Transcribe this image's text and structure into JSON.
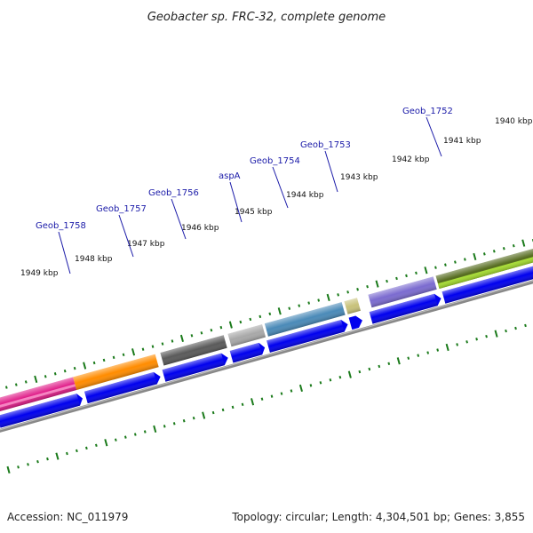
{
  "title": "Geobacter sp. FRC-32, complete genome",
  "footer": {
    "accession": "Accession: NC_011979",
    "summary": "Topology: circular; Length: 4,304,501 bp; Genes: 3,855"
  },
  "kbp_labels": [
    {
      "kb": 1940,
      "text": "1940 kbp"
    },
    {
      "kb": 1941,
      "text": "1941 kbp"
    },
    {
      "kb": 1942,
      "text": "1942 kbp"
    },
    {
      "kb": 1943,
      "text": "1943 kbp"
    },
    {
      "kb": 1944,
      "text": "1944 kbp"
    },
    {
      "kb": 1945,
      "text": "1945 kbp"
    },
    {
      "kb": 1946,
      "text": "1946 kbp"
    },
    {
      "kb": 1947,
      "text": "1947 kbp"
    },
    {
      "kb": 1948,
      "text": "1948 kbp"
    },
    {
      "kb": 1949,
      "text": "1949 kbp"
    }
  ],
  "gene_labels": [
    {
      "name": "Geob_1752",
      "color": "#556b1e"
    },
    {
      "name": "Geob_1753",
      "color": "#7b6bd0"
    },
    {
      "name": "Geob_1754",
      "color": "#c8c27a"
    },
    {
      "name": "aspA",
      "color": "#4a8ab8"
    },
    {
      "name": "Geob_1756",
      "color": "#a8a8a8"
    },
    {
      "name": "Geob_1757",
      "color": "#5a5a5a"
    },
    {
      "name": "Geob_1758",
      "color": "#ff8c00"
    }
  ],
  "colors": {
    "cds": "#0000ee",
    "backbone": "#888888",
    "tick": "#1a7a1a",
    "label_line": "#1a1aa8"
  }
}
